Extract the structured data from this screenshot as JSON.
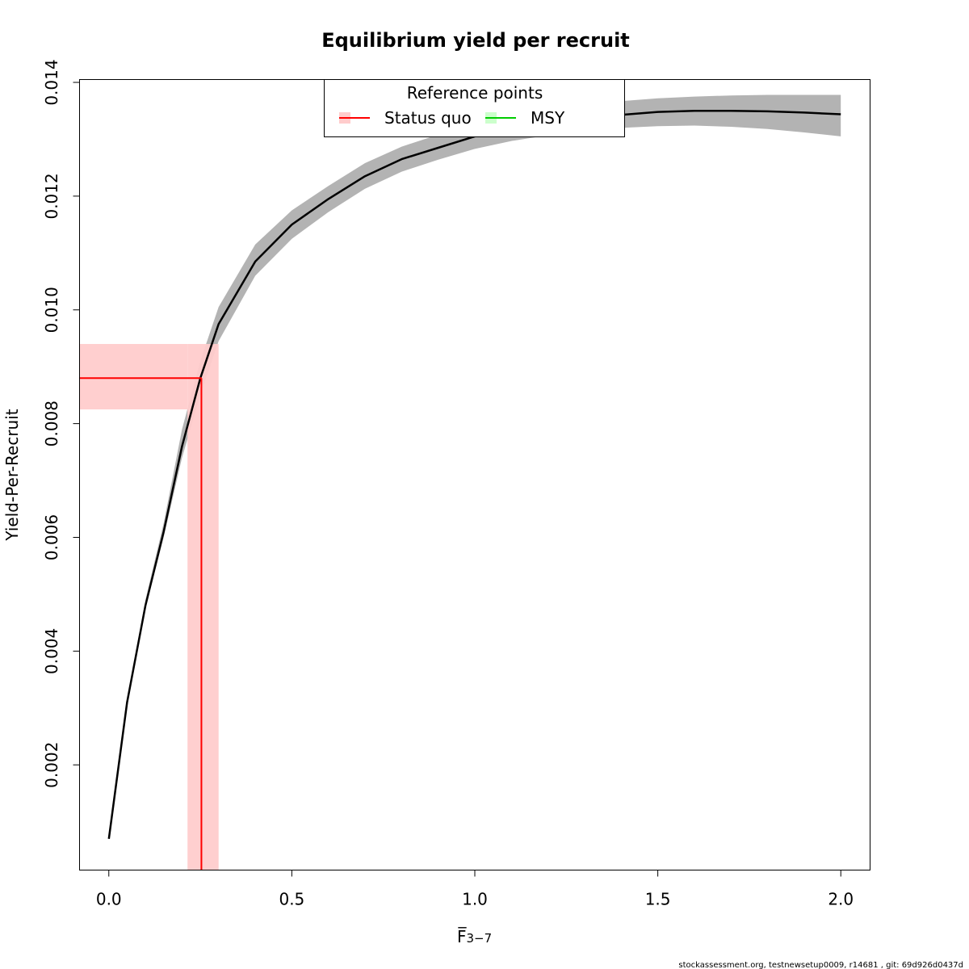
{
  "chart_data": {
    "type": "line",
    "title": "Equilibrium yield per recruit",
    "xlabel": "F̅",
    "xlabel_subscript": "3−7",
    "ylabel": "Yield-Per-Recruit",
    "xlim": [
      -0.08,
      2.08
    ],
    "ylim": [
      0.00015,
      0.01405
    ],
    "x_ticks": [
      0.0,
      0.5,
      1.0,
      1.5,
      2.0
    ],
    "x_tick_labels": [
      "0.0",
      "0.5",
      "1.0",
      "1.5",
      "2.0"
    ],
    "y_ticks": [
      0.002,
      0.004,
      0.006,
      0.008,
      0.01,
      0.012,
      0.014
    ],
    "y_tick_labels": [
      "0.002",
      "0.004",
      "0.006",
      "0.008",
      "0.010",
      "0.012",
      "0.014"
    ],
    "grid": false,
    "series": [
      {
        "color": "#000000",
        "band_color": "#b3b3b3",
        "points": [
          {
            "x": 0.0,
            "y": 0.0007,
            "lo": 0.0007,
            "hi": 0.0007
          },
          {
            "x": 0.05,
            "y": 0.0031,
            "lo": 0.0031,
            "hi": 0.00312
          },
          {
            "x": 0.1,
            "y": 0.0048,
            "lo": 0.00475,
            "hi": 0.0049
          },
          {
            "x": 0.15,
            "y": 0.0061,
            "lo": 0.006,
            "hi": 0.00625
          },
          {
            "x": 0.2,
            "y": 0.0076,
            "lo": 0.0074,
            "hi": 0.0079
          },
          {
            "x": 0.25,
            "y": 0.0088,
            "lo": 0.0085,
            "hi": 0.0091
          },
          {
            "x": 0.3,
            "y": 0.00975,
            "lo": 0.00945,
            "hi": 0.01005
          },
          {
            "x": 0.4,
            "y": 0.01085,
            "lo": 0.0106,
            "hi": 0.01115
          },
          {
            "x": 0.5,
            "y": 0.0115,
            "lo": 0.01125,
            "hi": 0.01175
          },
          {
            "x": 0.6,
            "y": 0.01195,
            "lo": 0.01172,
            "hi": 0.01218
          },
          {
            "x": 0.7,
            "y": 0.01235,
            "lo": 0.01213,
            "hi": 0.01258
          },
          {
            "x": 0.8,
            "y": 0.01265,
            "lo": 0.01243,
            "hi": 0.01287
          },
          {
            "x": 0.9,
            "y": 0.01285,
            "lo": 0.01264,
            "hi": 0.01308
          },
          {
            "x": 1.0,
            "y": 0.01305,
            "lo": 0.01283,
            "hi": 0.01327
          },
          {
            "x": 1.1,
            "y": 0.01318,
            "lo": 0.01297,
            "hi": 0.0134
          },
          {
            "x": 1.2,
            "y": 0.01328,
            "lo": 0.01307,
            "hi": 0.0135
          },
          {
            "x": 1.3,
            "y": 0.01337,
            "lo": 0.01315,
            "hi": 0.0136
          },
          {
            "x": 1.4,
            "y": 0.01343,
            "lo": 0.0132,
            "hi": 0.01367
          },
          {
            "x": 1.5,
            "y": 0.01348,
            "lo": 0.01323,
            "hi": 0.01372
          },
          {
            "x": 1.6,
            "y": 0.0135,
            "lo": 0.01324,
            "hi": 0.01375
          },
          {
            "x": 1.7,
            "y": 0.0135,
            "lo": 0.01322,
            "hi": 0.01377
          },
          {
            "x": 1.8,
            "y": 0.01349,
            "lo": 0.01318,
            "hi": 0.01378
          },
          {
            "x": 1.9,
            "y": 0.01347,
            "lo": 0.01312,
            "hi": 0.01378
          },
          {
            "x": 2.0,
            "y": 0.01344,
            "lo": 0.01305,
            "hi": 0.01378
          }
        ]
      }
    ],
    "reference_points": {
      "status_quo": {
        "label": "Status quo",
        "color": "#ff0000",
        "band_color": "#ffcccc",
        "f": 0.253,
        "f_lo": 0.215,
        "f_hi": 0.3,
        "yield": 0.0088,
        "yield_lo": 0.00825,
        "yield_hi": 0.0094
      },
      "msy": {
        "label": "MSY",
        "color": "#00cc00",
        "band_color": "#ccffcc"
      }
    },
    "legend": {
      "title": "Reference points",
      "placement": "top-center"
    }
  },
  "footer": "stockassessment.org, testnewsetup0009, r14681 , git: 69d926d0437d"
}
